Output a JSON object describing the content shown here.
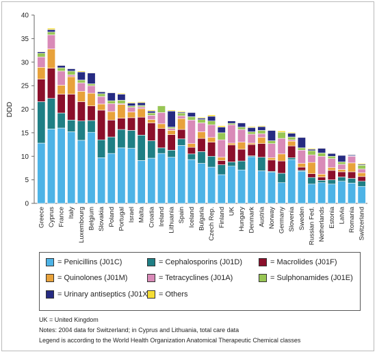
{
  "chart_data": {
    "type": "bar",
    "stacked": true,
    "ylabel": "DDD",
    "ylim": [
      0,
      40
    ],
    "yticks": [
      0,
      5,
      10,
      15,
      20,
      25,
      30,
      35,
      40
    ],
    "categories": [
      "Greece",
      "Cyprus",
      "France",
      "Italy",
      "Luxembourg",
      "Belgium",
      "Slovakia",
      "Poland",
      "Portugal",
      "Israel",
      "Malta",
      "Croatia",
      "Ireland",
      "Lithuania",
      "Spain",
      "Iceland",
      "Bulgaria",
      "Czech Rep.",
      "Finland",
      "UK",
      "Hungary",
      "Denmark",
      "Austria",
      "Norway",
      "Germany",
      "Slovenia",
      "Sweden",
      "Russian Fed.",
      "Netherlands",
      "Estonia",
      "Latvia",
      "Romania",
      "Switzerland"
    ],
    "series": [
      {
        "name": "= Penicillins (J01C)",
        "color": "#4db3e6",
        "values": [
          12.8,
          15.8,
          16.0,
          15.2,
          13.4,
          15.1,
          9.7,
          10.6,
          11.8,
          11.7,
          9.1,
          9.6,
          10.6,
          9.8,
          12.3,
          9.3,
          8.5,
          7.7,
          6.1,
          7.9,
          7.1,
          9.9,
          6.9,
          6.6,
          4.4,
          9.3,
          6.8,
          4.1,
          4.4,
          4.1,
          4.7,
          4.3,
          3.6
        ]
      },
      {
        "name": "= Cephalosporins (J01D)",
        "color": "#1f7f85",
        "values": [
          8.8,
          6.5,
          3.2,
          2.5,
          4.1,
          2.5,
          3.8,
          3.5,
          3.9,
          3.8,
          5.4,
          3.7,
          1.2,
          1.5,
          1.4,
          1.2,
          2.5,
          2.3,
          2.1,
          0.9,
          1.9,
          0.2,
          2.9,
          0.2,
          2.0,
          0.4,
          0.2,
          1.4,
          0.5,
          0.9,
          0.9,
          1.0,
          1.1
        ]
      },
      {
        "name": "= Macrolides (J01F)",
        "color": "#8b0f2b",
        "values": [
          4.8,
          6.4,
          4.0,
          5.5,
          4.1,
          3.1,
          6.3,
          3.6,
          2.4,
          2.7,
          3.8,
          3.8,
          4.1,
          3.3,
          2.0,
          1.4,
          2.8,
          3.0,
          0.9,
          3.6,
          2.5,
          2.4,
          2.9,
          2.4,
          2.6,
          2.5,
          0.7,
          0.8,
          0.7,
          2.0,
          1.1,
          1.4,
          1.0
        ]
      },
      {
        "name": "= Quinolones (J01M)",
        "color": "#e8a23b",
        "values": [
          2.5,
          4.1,
          1.9,
          3.7,
          2.2,
          2.7,
          1.3,
          1.8,
          2.9,
          1.2,
          1.8,
          0.7,
          1.0,
          0.9,
          2.3,
          0.8,
          1.4,
          1.0,
          0.7,
          0.4,
          1.5,
          0.3,
          1.3,
          0.5,
          1.5,
          1.0,
          0.8,
          2.4,
          0.6,
          0.6,
          0.5,
          1.9,
          0.8
        ]
      },
      {
        "name": "= Tetracyclines (J01A)",
        "color": "#d98ab8",
        "values": [
          2.2,
          3.0,
          3.0,
          0.4,
          1.8,
          1.6,
          1.6,
          1.7,
          0.2,
          1.0,
          0.4,
          0.9,
          2.4,
          0.4,
          0.6,
          5.0,
          1.9,
          2.7,
          3.7,
          3.9,
          2.7,
          1.9,
          0.8,
          3.0,
          3.3,
          0.3,
          2.8,
          1.6,
          3.8,
          1.9,
          1.1,
          1.4,
          0.8
        ]
      },
      {
        "name": "= Sulphonamides (J01E)",
        "color": "#98c654",
        "values": [
          0.8,
          0.6,
          0.7,
          0.8,
          0.6,
          0.4,
          0.6,
          0.6,
          0.7,
          0.3,
          0.3,
          0.5,
          1.4,
          0.3,
          0.6,
          0.7,
          0.7,
          0.8,
          1.5,
          0.3,
          0.5,
          0.5,
          0.7,
          0.6,
          1.3,
          0.6,
          0.5,
          0.9,
          0.7,
          0.5,
          0.5,
          0.1,
          0.8
        ]
      },
      {
        "name": "= Urinary antiseptics (J01X)",
        "color": "#262b82",
        "values": [
          0.3,
          0.5,
          0.5,
          0.5,
          1.7,
          2.3,
          0.4,
          1.7,
          1.3,
          0.6,
          0.6,
          0.4,
          0.1,
          3.4,
          0.2,
          0.9,
          0.3,
          1.0,
          1.2,
          0.5,
          0.9,
          0.9,
          0.8,
          2.2,
          0.0,
          0.8,
          2.2,
          0.3,
          1.0,
          0.6,
          1.4,
          0.2,
          0.2
        ]
      },
      {
        "name": "= Others",
        "color": "#f5dd35",
        "values": [
          0.1,
          0.3,
          0.1,
          0.1,
          0.2,
          0.1,
          0.1,
          0.1,
          0.2,
          0.2,
          0.2,
          0.2,
          0.1,
          0.2,
          0.2,
          0.1,
          0.2,
          0.3,
          0.3,
          0.1,
          0.1,
          0.2,
          0.2,
          0.1,
          0.3,
          0.2,
          0.1,
          0.2,
          0.1,
          0.1,
          0.1,
          0.1,
          0.2
        ]
      }
    ],
    "legend_position": "bottom"
  },
  "notes": {
    "line1": "UK = United Kingdom",
    "line2": "Notes: 2004 data for Switzerland; in Cyprus and Lithuania, total care data",
    "line3": "Legend is according to the World Health Organization Anatomical Therapeutic Chemical classes"
  }
}
